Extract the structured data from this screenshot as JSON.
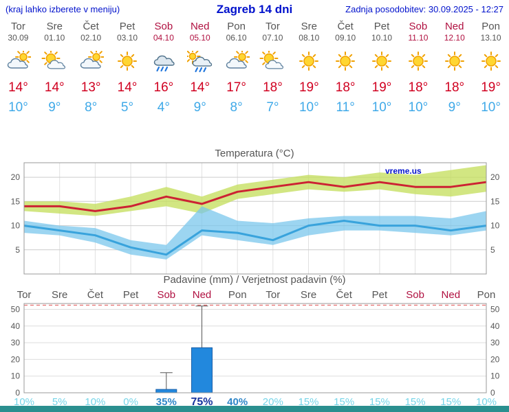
{
  "header": {
    "hint": "(kraj lahko izberete v meniju)",
    "title": "Zagreb 14 dni",
    "updated": "Zadnja posodobitev: 30.09.2025 - 12:27"
  },
  "days": [
    {
      "name": "Tor",
      "date": "30.09",
      "weekend": false,
      "icon": "cloud-sun",
      "high": "14°",
      "low": "10°"
    },
    {
      "name": "Sre",
      "date": "01.10",
      "weekend": false,
      "icon": "sun-cloud",
      "high": "14°",
      "low": "9°"
    },
    {
      "name": "Čet",
      "date": "02.10",
      "weekend": false,
      "icon": "cloud-sun",
      "high": "13°",
      "low": "8°"
    },
    {
      "name": "Pet",
      "date": "03.10",
      "weekend": false,
      "icon": "sun",
      "high": "14°",
      "low": "5°"
    },
    {
      "name": "Sob",
      "date": "04.10",
      "weekend": true,
      "icon": "rain",
      "high": "16°",
      "low": "4°"
    },
    {
      "name": "Ned",
      "date": "05.10",
      "weekend": true,
      "icon": "rain-sun",
      "high": "14°",
      "low": "9°"
    },
    {
      "name": "Pon",
      "date": "06.10",
      "weekend": false,
      "icon": "cloud-sun",
      "high": "17°",
      "low": "8°"
    },
    {
      "name": "Tor",
      "date": "07.10",
      "weekend": false,
      "icon": "sun-cloud",
      "high": "18°",
      "low": "7°"
    },
    {
      "name": "Sre",
      "date": "08.10",
      "weekend": false,
      "icon": "sun",
      "high": "19°",
      "low": "10°"
    },
    {
      "name": "Čet",
      "date": "09.10",
      "weekend": false,
      "icon": "sun",
      "high": "18°",
      "low": "11°"
    },
    {
      "name": "Pet",
      "date": "10.10",
      "weekend": false,
      "icon": "sun",
      "high": "19°",
      "low": "10°"
    },
    {
      "name": "Sob",
      "date": "11.10",
      "weekend": true,
      "icon": "sun",
      "high": "18°",
      "low": "10°"
    },
    {
      "name": "Ned",
      "date": "12.10",
      "weekend": true,
      "icon": "sun",
      "high": "18°",
      "low": "9°"
    },
    {
      "name": "Pon",
      "date": "13.10",
      "weekend": false,
      "icon": "sun",
      "high": "19°",
      "low": "10°"
    }
  ],
  "chart_data": [
    {
      "type": "line",
      "title": "Temperatura (°C)",
      "x": [
        "Tor",
        "Sre",
        "Čet",
        "Pet",
        "Sob",
        "Ned",
        "Pon",
        "Tor",
        "Sre",
        "Čet",
        "Pet",
        "Sob",
        "Ned",
        "Pon"
      ],
      "ylim": [
        0,
        23
      ],
      "yticks": [
        5,
        10,
        15,
        20
      ],
      "yticks_both_sides": true,
      "grid": true,
      "watermark": "vreme.us",
      "series": [
        {
          "name": "max",
          "color": "#cc2233",
          "values": [
            14,
            14,
            13,
            14,
            16,
            14.5,
            17,
            18,
            19,
            18,
            19,
            18,
            18,
            19
          ]
        },
        {
          "name": "min",
          "color": "#39a3dc",
          "values": [
            10,
            9,
            8,
            5.5,
            4,
            9,
            8.5,
            7,
            10,
            11,
            10,
            10,
            9,
            10
          ]
        },
        {
          "name": "max_band_upper",
          "pair": "max_band_lower",
          "color": "rgba(197,223,95,0.78)",
          "values": [
            15,
            15,
            14.5,
            16,
            18,
            16,
            18.5,
            19.5,
            20.5,
            20,
            21,
            20.5,
            21.5,
            22.5
          ]
        },
        {
          "name": "max_band_lower",
          "values": [
            13,
            12.5,
            12,
            13,
            14,
            12.5,
            15.5,
            16.5,
            17.5,
            17,
            17.5,
            16.5,
            16,
            17
          ]
        },
        {
          "name": "min_band_upper",
          "pair": "min_band_lower",
          "color": "rgba(118,197,236,0.72)",
          "values": [
            11,
            10,
            9.5,
            7,
            6,
            14,
            11,
            10.5,
            11.5,
            12,
            12,
            12,
            11.5,
            13
          ]
        },
        {
          "name": "min_band_lower",
          "values": [
            8.5,
            8,
            6.5,
            4,
            3,
            8,
            7,
            6,
            8,
            9,
            9,
            8.5,
            8,
            9
          ]
        }
      ]
    },
    {
      "type": "bar",
      "title": "Padavine (mm) / Verjetnost padavin (%)",
      "categories": [
        "Tor",
        "Sre",
        "Čet",
        "Pet",
        "Sob",
        "Ned",
        "Pon",
        "Tor",
        "Sre",
        "Čet",
        "Pet",
        "Sob",
        "Ned",
        "Pon"
      ],
      "values": [
        0,
        0,
        0,
        0,
        2,
        27,
        0,
        0,
        0,
        0,
        0,
        0,
        0,
        0
      ],
      "whisker_max": [
        0,
        0,
        0,
        0,
        12,
        52,
        0,
        0,
        0,
        0,
        0,
        0,
        0,
        0
      ],
      "threshold": 52.5,
      "ylim": [
        0,
        53.5
      ],
      "yticks": [
        0,
        10,
        20,
        30,
        40,
        50
      ],
      "yticks_both_sides": true,
      "grid": true,
      "bar_fill": "#2288dd",
      "bar_stroke": "#1a5fa8",
      "probabilities": [
        {
          "label": "10%",
          "level": "low"
        },
        {
          "label": "5%",
          "level": "low"
        },
        {
          "label": "10%",
          "level": "low"
        },
        {
          "label": "0%",
          "level": "low"
        },
        {
          "label": "35%",
          "level": "mid"
        },
        {
          "label": "75%",
          "level": "high"
        },
        {
          "label": "40%",
          "level": "mid"
        },
        {
          "label": "20%",
          "level": "low"
        },
        {
          "label": "15%",
          "level": "low"
        },
        {
          "label": "15%",
          "level": "low"
        },
        {
          "label": "15%",
          "level": "low"
        },
        {
          "label": "15%",
          "level": "low"
        },
        {
          "label": "15%",
          "level": "low"
        },
        {
          "label": "10%",
          "level": "low"
        }
      ]
    }
  ],
  "colors": {
    "header_blue": "#0011cc",
    "high_red": "#d00020",
    "low_blue": "#3fa9e8",
    "weekend_red": "#b01040",
    "footer_teal": "#2a8f8f"
  }
}
